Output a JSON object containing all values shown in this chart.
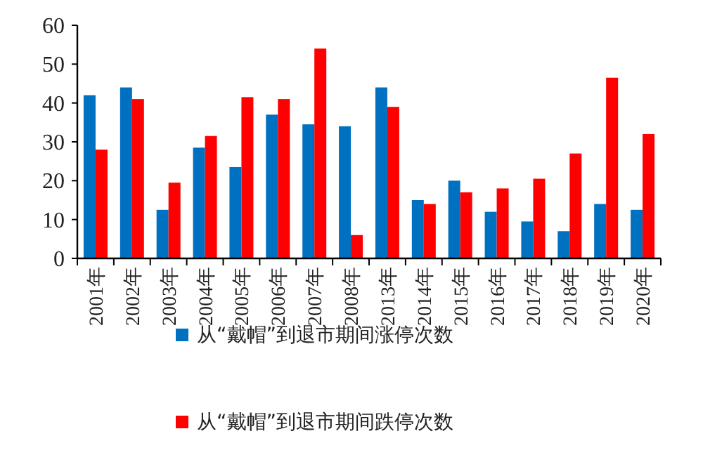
{
  "chart_data": {
    "type": "bar",
    "categories": [
      "2001年",
      "2002年",
      "2003年",
      "2004年",
      "2005年",
      "2006年",
      "2007年",
      "2008年",
      "2013年",
      "2014年",
      "2015年",
      "2016年",
      "2017年",
      "2018年",
      "2019年",
      "2020年"
    ],
    "series": [
      {
        "name": "从“戴帽”到退市期间涨停次数",
        "color": "#0070c0",
        "values": [
          42,
          44,
          12.5,
          28.5,
          23.5,
          37,
          34.5,
          34,
          44,
          15,
          20,
          12,
          9.5,
          7,
          14,
          12.5
        ]
      },
      {
        "name": "从“戴帽”到退市期间跌停次数",
        "color": "#ff0000",
        "values": [
          28,
          41,
          19.5,
          31.5,
          41.5,
          41,
          54,
          6,
          39,
          14,
          17,
          18,
          20.5,
          27,
          46.5,
          32
        ]
      }
    ],
    "ylim": [
      0,
      60
    ],
    "yticks": [
      0,
      10,
      20,
      30,
      40,
      50,
      60
    ],
    "legend": "bottom"
  }
}
